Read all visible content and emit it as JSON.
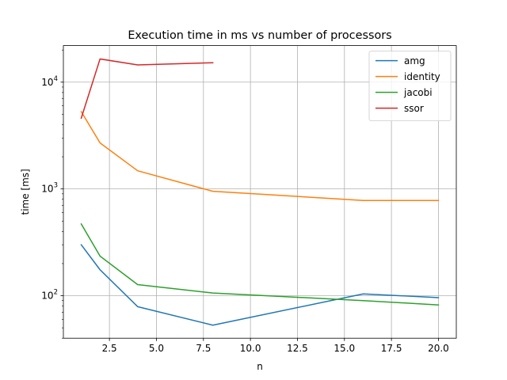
{
  "chart_data": {
    "type": "line",
    "title": "Execution time in ms vs number of processors",
    "xlabel": "n",
    "ylabel": "time [ms]",
    "xlim": [
      0.05,
      20.95
    ],
    "ylim": [
      40,
      22000
    ],
    "yscale": "log",
    "grid": true,
    "legend": "top-right",
    "x_ticks": [
      2.5,
      5.0,
      7.5,
      10.0,
      12.5,
      15.0,
      17.5,
      20.0
    ],
    "x_tick_labels": [
      "2.5",
      "5.0",
      "7.5",
      "10.0",
      "12.5",
      "15.0",
      "17.5",
      "20.0"
    ],
    "y_major_ticks": [
      100,
      1000,
      10000
    ],
    "y_tick_labels": [
      {
        "base": "10",
        "exp": "2"
      },
      {
        "base": "10",
        "exp": "3"
      },
      {
        "base": "10",
        "exp": "4"
      }
    ],
    "series": [
      {
        "name": "amg",
        "color": "#1f77b4",
        "x": [
          1,
          2,
          4,
          8,
          16,
          20
        ],
        "y": [
          300,
          175,
          79,
          53,
          104,
          96
        ]
      },
      {
        "name": "identity",
        "color": "#ff7f0e",
        "x": [
          1,
          2,
          4,
          8,
          16,
          20
        ],
        "y": [
          5300,
          2700,
          1480,
          950,
          780,
          780
        ]
      },
      {
        "name": "jacobi",
        "color": "#2ca02c",
        "x": [
          1,
          2,
          4,
          8,
          16,
          20
        ],
        "y": [
          470,
          235,
          127,
          106,
          90,
          82
        ]
      },
      {
        "name": "ssor",
        "color": "#d62728",
        "x": [
          1,
          2,
          4,
          8
        ],
        "y": [
          4600,
          16500,
          14500,
          15200
        ]
      }
    ]
  }
}
